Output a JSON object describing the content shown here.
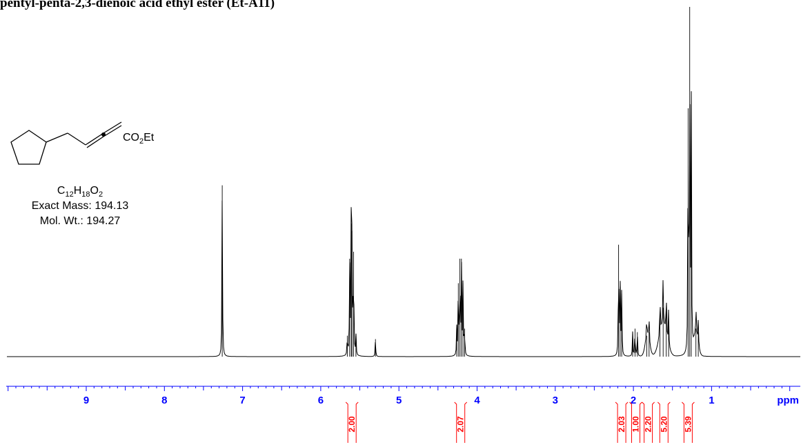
{
  "title": "pentyl-penta-2,3-dienoic acid ethyl ester (Et-A11)",
  "compound": {
    "substituent": "CO2Et",
    "formula_parts": [
      [
        "C",
        "12"
      ],
      [
        "H",
        "18"
      ],
      [
        "O",
        "2"
      ]
    ],
    "exact_mass": "Exact Mass: 194.13",
    "mol_wt": "Mol. Wt.: 194.27"
  },
  "chart_data": {
    "type": "line",
    "xlabel": "ppm",
    "xlim": [
      10.0,
      0.0
    ],
    "x_reversed": true,
    "tick_labels": [
      "9",
      "8",
      "7",
      "6",
      "5",
      "4",
      "3",
      "2",
      "1"
    ],
    "tick_values": [
      9,
      8,
      7,
      6,
      5,
      4,
      3,
      2,
      1
    ],
    "peaks": [
      {
        "ppm": 7.26,
        "height": 0.49
      },
      {
        "ppm": 5.66,
        "height": 0.06
      },
      {
        "ppm": 5.63,
        "height": 0.28
      },
      {
        "ppm": 5.61,
        "height": 0.38
      },
      {
        "ppm": 5.6,
        "height": 0.36
      },
      {
        "ppm": 5.58,
        "height": 0.3
      },
      {
        "ppm": 5.55,
        "height": 0.06
      },
      {
        "ppm": 5.3,
        "height": 0.05
      },
      {
        "ppm": 4.26,
        "height": 0.08
      },
      {
        "ppm": 4.24,
        "height": 0.21
      },
      {
        "ppm": 4.22,
        "height": 0.28
      },
      {
        "ppm": 4.2,
        "height": 0.28
      },
      {
        "ppm": 4.18,
        "height": 0.21
      },
      {
        "ppm": 4.16,
        "height": 0.08
      },
      {
        "ppm": 2.19,
        "height": 0.32
      },
      {
        "ppm": 2.17,
        "height": 0.2
      },
      {
        "ppm": 2.15,
        "height": 0.18
      },
      {
        "ppm": 2.01,
        "height": 0.07
      },
      {
        "ppm": 1.98,
        "height": 0.08
      },
      {
        "ppm": 1.95,
        "height": 0.07
      },
      {
        "ppm": 1.83,
        "height": 0.06
      },
      {
        "ppm": 1.8,
        "height": 0.07
      },
      {
        "ppm": 1.66,
        "height": 0.12
      },
      {
        "ppm": 1.62,
        "height": 0.14
      },
      {
        "ppm": 1.58,
        "height": 0.13
      },
      {
        "ppm": 1.55,
        "height": 0.1
      },
      {
        "ppm": 1.3,
        "height": 0.71
      },
      {
        "ppm": 1.28,
        "height": 1.0
      },
      {
        "ppm": 1.26,
        "height": 0.72
      },
      {
        "ppm": 1.2,
        "height": 0.08
      },
      {
        "ppm": 1.17,
        "height": 0.07
      }
    ],
    "integrals": [
      {
        "ppm": 5.6,
        "label": "2.00"
      },
      {
        "ppm": 4.21,
        "label": "2.07"
      },
      {
        "ppm": 2.15,
        "label": "2.03"
      },
      {
        "ppm": 1.97,
        "label": "1.00"
      },
      {
        "ppm": 1.81,
        "label": "2.20"
      },
      {
        "ppm": 1.61,
        "label": "5.20"
      },
      {
        "ppm": 1.3,
        "label": "5.39"
      }
    ]
  },
  "colors": {
    "axis": "#0000ff",
    "spectrum": "#000000",
    "integral": "#ff0000"
  }
}
